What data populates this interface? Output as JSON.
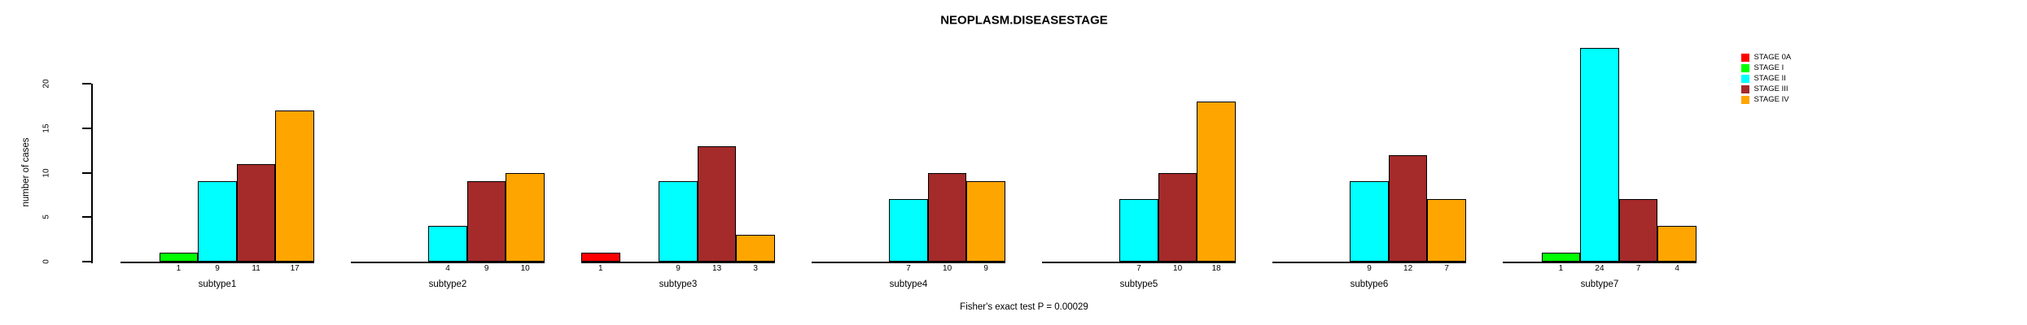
{
  "chart_data": {
    "type": "bar",
    "title": "NEOPLASM.DISEASESTAGE",
    "ylabel": "number of cases",
    "xlabel": "",
    "caption": "Fisher's exact test P = 0.00029",
    "ylim": [
      0,
      20
    ],
    "yticks": [
      0,
      5,
      10,
      15,
      20
    ],
    "grid": false,
    "legend_position": "right",
    "bar_value_labels": "value printed below each nonzero bar",
    "categories": [
      "subtype1",
      "subtype2",
      "subtype3",
      "subtype4",
      "subtype5",
      "subtype6",
      "subtype7"
    ],
    "series": [
      {
        "name": "STAGE 0A",
        "color": "#FF0000",
        "values": [
          0,
          0,
          1,
          0,
          0,
          0,
          0
        ]
      },
      {
        "name": "STAGE I",
        "color": "#00FF00",
        "values": [
          1,
          0,
          0,
          0,
          0,
          0,
          1
        ]
      },
      {
        "name": "STAGE II",
        "color": "#00FFFF",
        "values": [
          9,
          4,
          9,
          7,
          7,
          9,
          24
        ]
      },
      {
        "name": "STAGE III",
        "color": "#A52A2A",
        "values": [
          11,
          9,
          13,
          10,
          10,
          12,
          7
        ]
      },
      {
        "name": "STAGE IV",
        "color": "#FFA500",
        "values": [
          17,
          10,
          3,
          9,
          18,
          7,
          4
        ]
      }
    ]
  }
}
